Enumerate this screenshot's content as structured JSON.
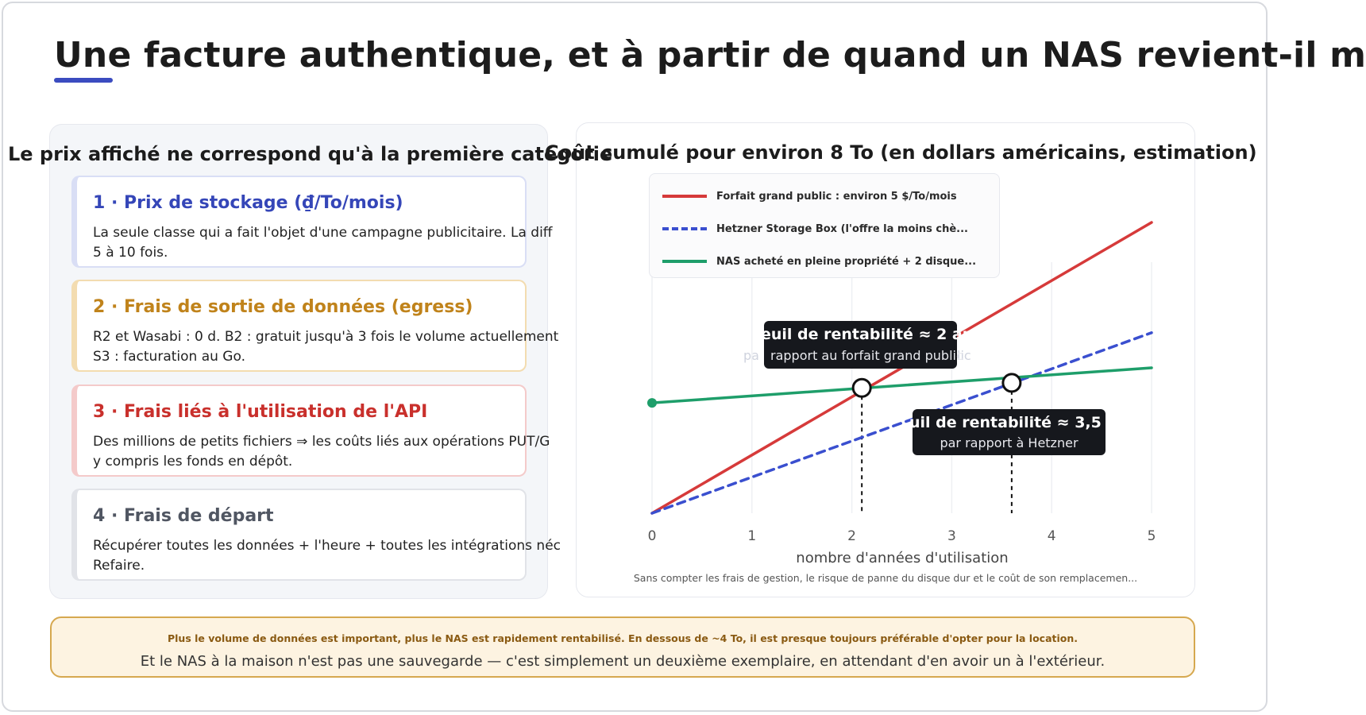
{
  "page": {
    "title": "Une facture authentique, et à partir de quand un NAS revient-il m"
  },
  "left": {
    "heading": "Le prix affiché ne correspond qu'à la première catégorie",
    "cards": [
      {
        "title": "1 · Prix de stockage (₫/To/mois)",
        "line1": "La seule classe qui a fait l'objet d'une campagne publicitaire. La diff",
        "line2": "5 à 10 fois."
      },
      {
        "title": "2 · Frais de sortie de données (egress)",
        "line1": "R2 et Wasabi : 0 d. B2 : gratuit jusqu'à 3 fois le volume actuellement",
        "line2": "S3 : facturation au Go."
      },
      {
        "title": "3 · Frais liés à l'utilisation de l'API",
        "line1": "Des millions de petits fichiers ⇒ les coûts liés aux opérations PUT/G",
        "line2": "y compris les fonds en dépôt."
      },
      {
        "title": "4 · Frais de départ",
        "line1": "Récupérer toutes les données + l'heure + toutes les intégrations néc",
        "line2": "Refaire."
      }
    ]
  },
  "chart": {
    "callout1_main": "euil de rentabilité ≈ 2 an",
    "callout1_sub": "rapport au forfait grand public",
    "callout1_ghost_left": "pa",
    "callout1_ghost_right": "lic",
    "callout2_main": "uil de rentabilité ≈ 3,5 a",
    "callout2_sub": "par rapport à Hetzner",
    "footnote": "Sans compter les frais de gestion, le risque de panne du disque dur et le coût de son remplacemen..."
  },
  "chart_data": {
    "type": "line",
    "title": "Coût cumulé pour environ 8 To (en dollars américains, estimation)",
    "xlabel": "nombre d'années d'utilisation",
    "ylabel": "",
    "x_ticks": [
      0,
      1,
      2,
      3,
      4,
      5
    ],
    "xlim": [
      0,
      5
    ],
    "ylim": [
      0,
      2.9
    ],
    "grid": true,
    "legend_position": "top-left",
    "series": [
      {
        "name": "Forfait grand public : environ 5 $/To/mois",
        "color": "#d63a3a",
        "dash": false,
        "x": [
          0,
          5
        ],
        "y": [
          0,
          2.9
        ]
      },
      {
        "name": "Hetzner Storage Box (l'offre la moins chè...",
        "color": "#3a4fcf",
        "dash": true,
        "x": [
          0,
          5
        ],
        "y": [
          0,
          1.8
        ]
      },
      {
        "name": "NAS acheté en pleine propriété + 2 disque...",
        "color": "#1e9e6a",
        "dash": false,
        "x": [
          0,
          5
        ],
        "y": [
          1.1,
          1.45
        ]
      }
    ],
    "breakeven_points": [
      {
        "x": 2.1,
        "y": 1.25
      },
      {
        "x": 3.6,
        "y": 1.3
      }
    ]
  },
  "footer": {
    "line1": "Plus le volume de données est important, plus le NAS est rapidement rentabilisé. En dessous de ~4 To, il est presque toujours préférable d'opter pour la location.",
    "line2": "Et le NAS à la maison n'est pas une sauvegarde — c'est simplement un deuxième exemplaire, en attendant d'en avoir un à l'extérieur."
  }
}
